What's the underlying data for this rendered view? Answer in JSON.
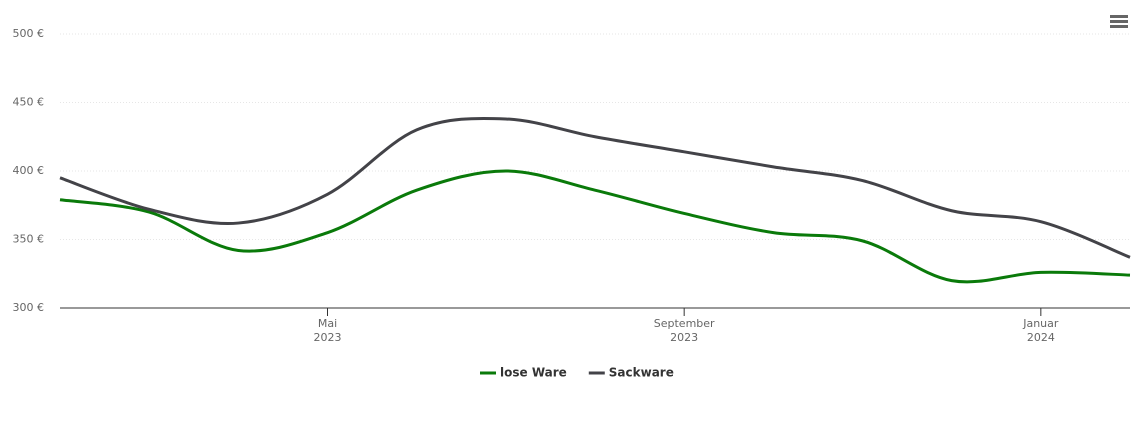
{
  "chart_data": {
    "type": "line",
    "x": [
      "2023-02",
      "2023-03",
      "2023-04",
      "2023-05",
      "2023-06",
      "2023-07",
      "2023-08",
      "2023-09",
      "2023-10",
      "2023-11",
      "2023-12",
      "2024-01",
      "2024-02"
    ],
    "series": [
      {
        "name": "lose Ware",
        "color": "#0a7a0a",
        "values": [
          379,
          370,
          342,
          355,
          386,
          400,
          386,
          369,
          355,
          349,
          320,
          326,
          324
        ]
      },
      {
        "name": "Sackware",
        "color": "#434348",
        "values": [
          395,
          372,
          362,
          383,
          430,
          438,
          425,
          414,
          403,
          393,
          371,
          363,
          337
        ]
      }
    ],
    "xlim": [
      "2023-02",
      "2024-02"
    ],
    "xticks": [
      {
        "value": "2023-05",
        "label": [
          "Mai",
          "2023"
        ]
      },
      {
        "value": "2023-09",
        "label": [
          "September",
          "2023"
        ]
      },
      {
        "value": "2024-01",
        "label": [
          "Januar",
          "2024"
        ]
      }
    ],
    "ylim": [
      300,
      500
    ],
    "yticks": [
      {
        "value": 300,
        "label": "300 €"
      },
      {
        "value": 350,
        "label": "350 €"
      },
      {
        "value": 400,
        "label": "400 €"
      },
      {
        "value": 450,
        "label": "450 €"
      },
      {
        "value": 500,
        "label": "500 €"
      }
    ],
    "grid": true,
    "legend": "bottom"
  }
}
